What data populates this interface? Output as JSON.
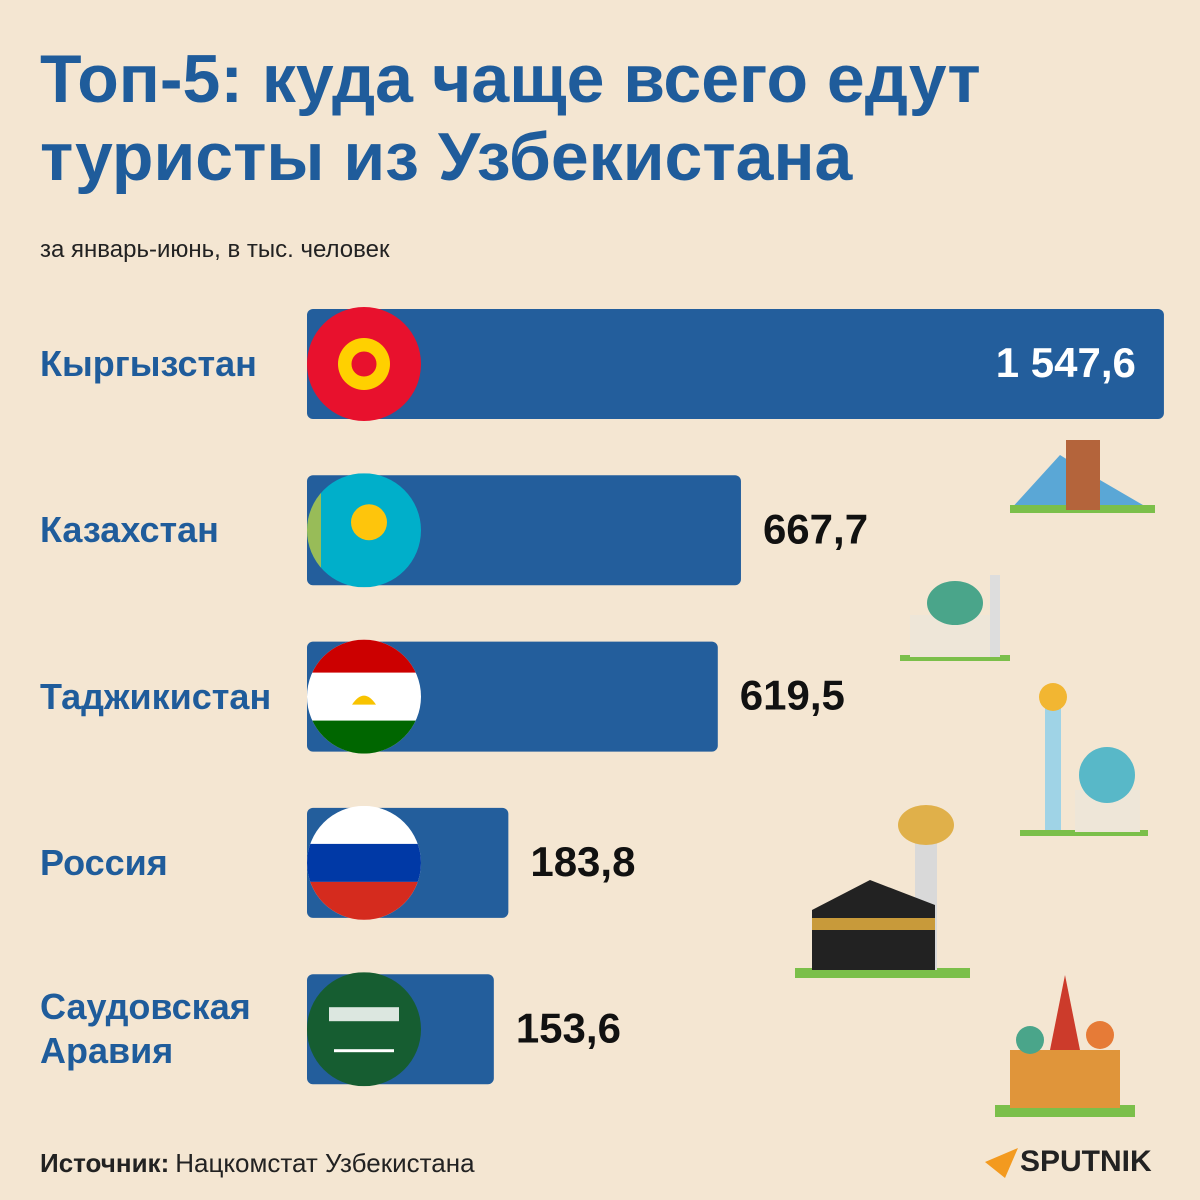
{
  "chart_data": {
    "type": "bar",
    "title": "Топ-5: куда чаще всего едут туристы из Узбекистана",
    "subtitle": "за январь-июнь, в тыс. человек",
    "categories": [
      "Кыргызстан",
      "Казахстан",
      "Таджикистан",
      "Россия",
      "Саудовская Аравия"
    ],
    "values": [
      1547.6,
      667.7,
      619.5,
      183.8,
      153.6
    ],
    "value_labels": [
      "1 547,6",
      "667,7",
      "619,5",
      "183,8",
      "153,6"
    ],
    "color": "#235e9c",
    "source_label": "Источник:",
    "source": "Нацкомстат Узбекистана",
    "brand": "SPUTNIK"
  }
}
